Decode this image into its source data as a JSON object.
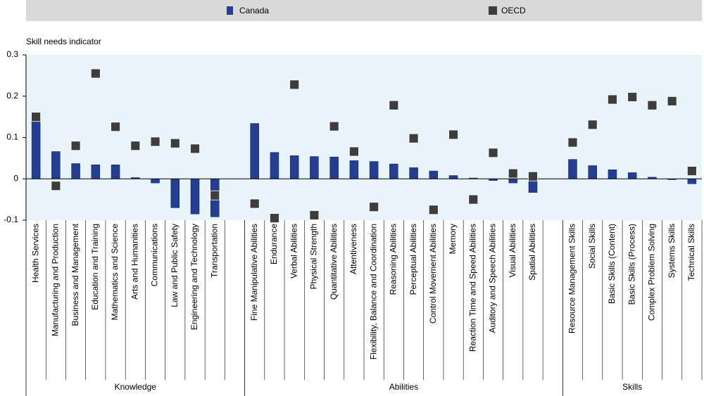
{
  "chart_data": {
    "type": "bar",
    "y_label": "Skill needs indicator",
    "groups": [
      {
        "label": "Knowledge",
        "categories": [
          "Health Services",
          "Manufacturing and Production",
          "Business and Management",
          "Education and Training",
          "Mathematics and Science",
          "Arts and Humanities",
          "Communications",
          "Law and Public Safety",
          "Engineering and Technology",
          "Transportation"
        ]
      },
      {
        "label": "Abilities",
        "categories": [
          "Fine Manipulative Abilities",
          "Endurance",
          "Verbal Abilities",
          "Physical Strength",
          "Quantitative Abilities",
          "Attentiveness",
          "Flexibility, Balance and Coordination",
          "Reasoning Abilities",
          "Perceptual Abilities",
          "Control Movement Abilities",
          "Memory",
          "Reaction Time and Speed Abilities",
          "Auditory and Speech Abilities",
          "Visual Abilities",
          "Spatial Abilities"
        ]
      },
      {
        "label": "Skills",
        "categories": [
          "Resource Management Skills",
          "Social Skills",
          "Basic Skills (Content)",
          "Basic Skills (Process)",
          "Complex Problem Solving",
          "Systems Skills",
          "Technical Skills"
        ]
      }
    ],
    "series": [
      {
        "name": "Canada",
        "type": "bar",
        "color": "#243f91",
        "values": [
          0.146,
          0.066,
          0.037,
          0.034,
          0.034,
          0.003,
          -0.01,
          -0.07,
          -0.085,
          -0.092,
          0.134,
          0.064,
          0.056,
          0.054,
          0.053,
          0.044,
          0.042,
          0.036,
          0.027,
          0.019,
          0.008,
          0.002,
          -0.004,
          -0.01,
          -0.033,
          0.047,
          0.032,
          0.022,
          0.015,
          0.004,
          -0.002,
          -0.012
        ]
      },
      {
        "name": "OECD",
        "type": "marker",
        "color": "#3d3d3d",
        "values": [
          0.15,
          -0.017,
          0.08,
          0.255,
          0.126,
          0.08,
          0.09,
          0.086,
          0.073,
          -0.04,
          -0.06,
          -0.095,
          0.228,
          -0.088,
          0.127,
          0.066,
          -0.068,
          0.178,
          0.098,
          -0.075,
          0.107,
          -0.05,
          0.063,
          0.013,
          0.006,
          0.088,
          0.131,
          0.192,
          0.198,
          0.178,
          0.188,
          0.019
        ]
      }
    ],
    "ylim": [
      -0.1,
      0.3
    ],
    "yticks": [
      -0.1,
      0,
      0.1,
      0.2,
      0.3
    ]
  }
}
